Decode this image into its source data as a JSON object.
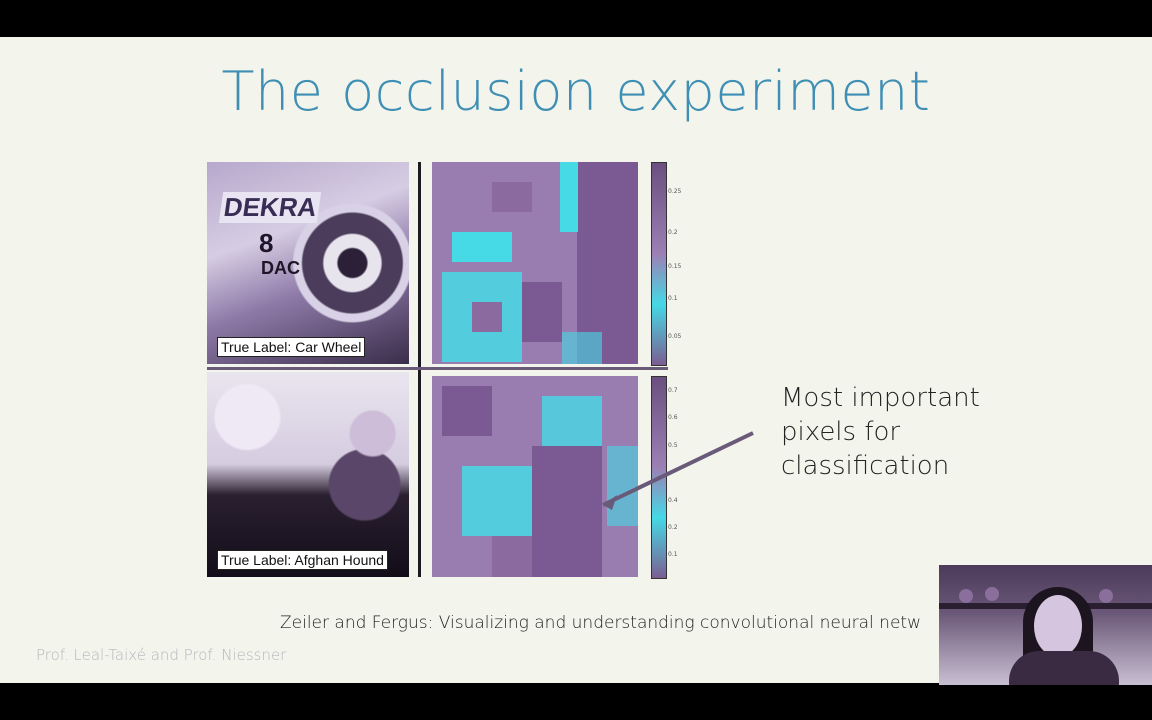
{
  "slide": {
    "title": "The occlusion experiment",
    "top_panel": {
      "label": "True Label: Car Wheel"
    },
    "bottom_panel": {
      "label": "True Label: Afghan Hound"
    },
    "colorbar_top_ticks": [
      "0.25",
      "0.2",
      "0.15",
      "0.1",
      "0.05"
    ],
    "colorbar_bottom_ticks": [
      "0.7",
      "0.6",
      "0.5",
      "0.4",
      "0.2",
      "0.1"
    ],
    "car_text": {
      "brand": "DEKRA",
      "number": "8",
      "sponsor": "DAC"
    },
    "annotation": [
      "Most important",
      "pixels for",
      "classification"
    ],
    "citation": "Zeiler and Fergus: Visualizing and understanding convolutional neural netw",
    "footer": "Prof. Leal-Taixé and Prof. Niessner"
  },
  "colors": {
    "title": "#3f8fb4",
    "heat_low": "#46d9e6",
    "heat_high": "#8d6aa2"
  }
}
